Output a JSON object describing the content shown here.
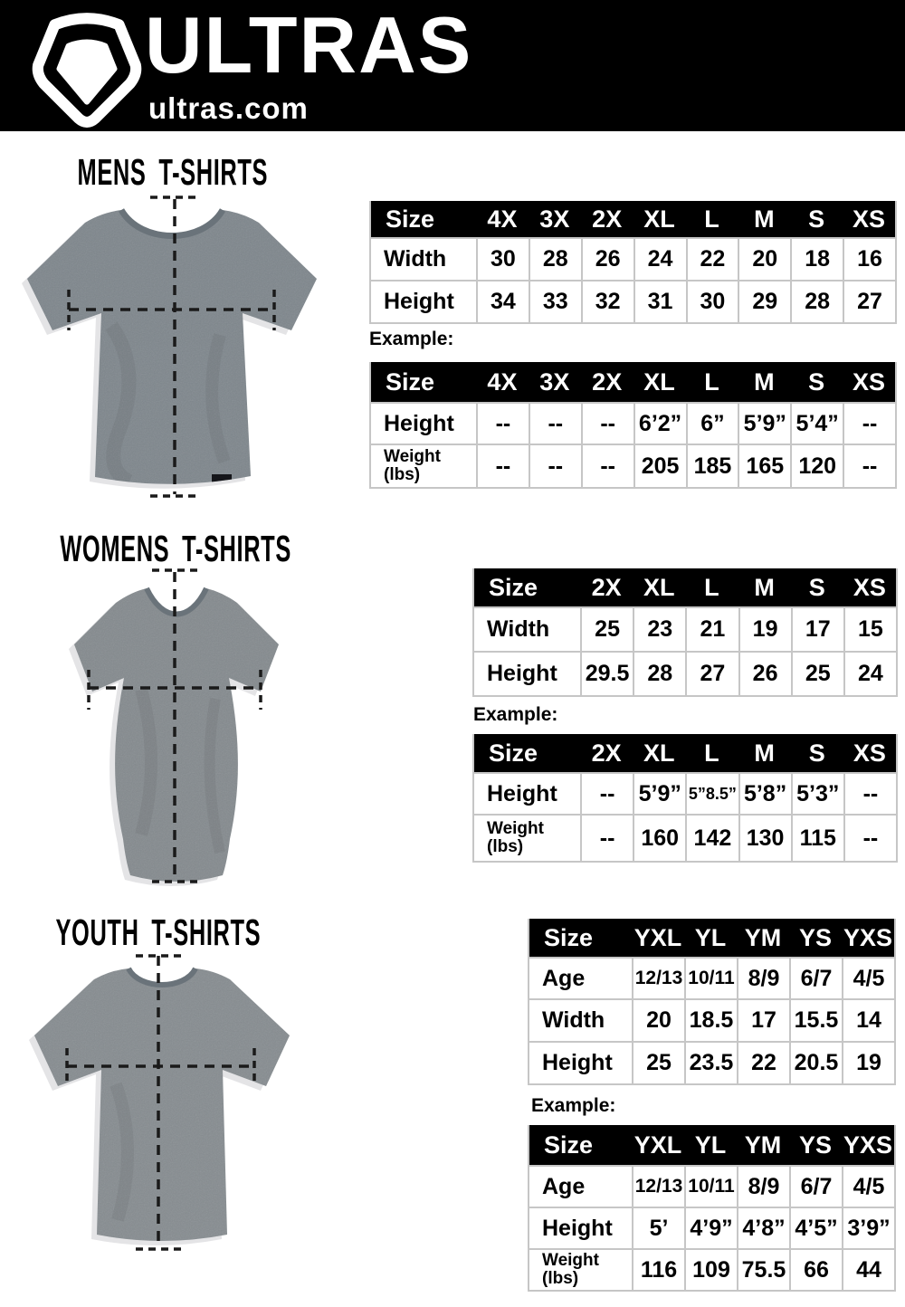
{
  "header": {
    "brand": "ULTRAS",
    "site": "ultras.com",
    "logo_icon": "ultras-pentagon-shield-icon",
    "bg_color": "#000000",
    "text_color": "#ffffff"
  },
  "colors": {
    "table_header_bg": "#000000",
    "table_header_text": "#ffffff",
    "table_border": "#c6c6c6",
    "body_text": "#000000",
    "shirt_gray": "#7e868c"
  },
  "sections": [
    {
      "id": "mens",
      "title": "MENS T-SHIRTS",
      "image": "mens-gray-tshirt-with-measurement-lines",
      "example_label": "Example:",
      "size_table": {
        "columns": [
          "Size",
          "4X",
          "3X",
          "2X",
          "XL",
          "L",
          "M",
          "S",
          "XS"
        ],
        "rows": [
          {
            "label": "Width",
            "values": [
              "30",
              "28",
              "26",
              "24",
              "22",
              "20",
              "18",
              "16"
            ]
          },
          {
            "label": "Height",
            "values": [
              "34",
              "33",
              "32",
              "31",
              "30",
              "29",
              "28",
              "27"
            ]
          }
        ]
      },
      "example_table": {
        "columns": [
          "Size",
          "4X",
          "3X",
          "2X",
          "XL",
          "L",
          "M",
          "S",
          "XS"
        ],
        "rows": [
          {
            "label": "Height",
            "values": [
              "--",
              "--",
              "--",
              "6’2”",
              "6”",
              "5’9”",
              "5’4”",
              "--"
            ]
          },
          {
            "label": "Weight",
            "label2": "(lbs)",
            "values": [
              "--",
              "--",
              "--",
              "205",
              "185",
              "165",
              "120",
              "--"
            ]
          }
        ]
      }
    },
    {
      "id": "womens",
      "title": "WOMENS T-SHIRTS",
      "image": "womens-gray-tshirt-with-measurement-lines",
      "example_label": "Example:",
      "size_table": {
        "columns": [
          "Size",
          "2X",
          "XL",
          "L",
          "M",
          "S",
          "XS"
        ],
        "rows": [
          {
            "label": "Width",
            "values": [
              "25",
              "23",
              "21",
              "19",
              "17",
              "15"
            ]
          },
          {
            "label": "Height",
            "values": [
              "29.5",
              "28",
              "27",
              "26",
              "25",
              "24"
            ]
          }
        ]
      },
      "example_table": {
        "columns": [
          "Size",
          "2X",
          "XL",
          "L",
          "M",
          "S",
          "XS"
        ],
        "rows": [
          {
            "label": "Height",
            "values": [
              "--",
              "5’9”",
              "5”8.5”",
              "5’8”",
              "5’3”",
              "--"
            ]
          },
          {
            "label": "Weight",
            "label2": "(lbs)",
            "values": [
              "--",
              "160",
              "142",
              "130",
              "115",
              "--"
            ]
          }
        ]
      }
    },
    {
      "id": "youth",
      "title": "YOUTH T-SHIRTS",
      "image": "youth-gray-tshirt-with-measurement-lines",
      "example_label": "Example:",
      "size_table": {
        "columns": [
          "Size",
          "YXL",
          "YL",
          "YM",
          "YS",
          "YXS"
        ],
        "rows": [
          {
            "label": "Age",
            "values": [
              "12/13",
              "10/11",
              "8/9",
              "6/7",
              "4/5"
            ]
          },
          {
            "label": "Width",
            "values": [
              "20",
              "18.5",
              "17",
              "15.5",
              "14"
            ]
          },
          {
            "label": "Height",
            "values": [
              "25",
              "23.5",
              "22",
              "20.5",
              "19"
            ]
          }
        ]
      },
      "example_table": {
        "columns": [
          "Size",
          "YXL",
          "YL",
          "YM",
          "YS",
          "YXS"
        ],
        "rows": [
          {
            "label": "Age",
            "values": [
              "12/13",
              "10/11",
              "8/9",
              "6/7",
              "4/5"
            ]
          },
          {
            "label": "Height",
            "values": [
              "5’",
              "4’9”",
              "4’8”",
              "4’5”",
              "3’9”"
            ]
          },
          {
            "label": "Weight",
            "label2": "(lbs)",
            "values": [
              "116",
              "109",
              "75.5",
              "66",
              "44"
            ]
          }
        ]
      }
    }
  ]
}
